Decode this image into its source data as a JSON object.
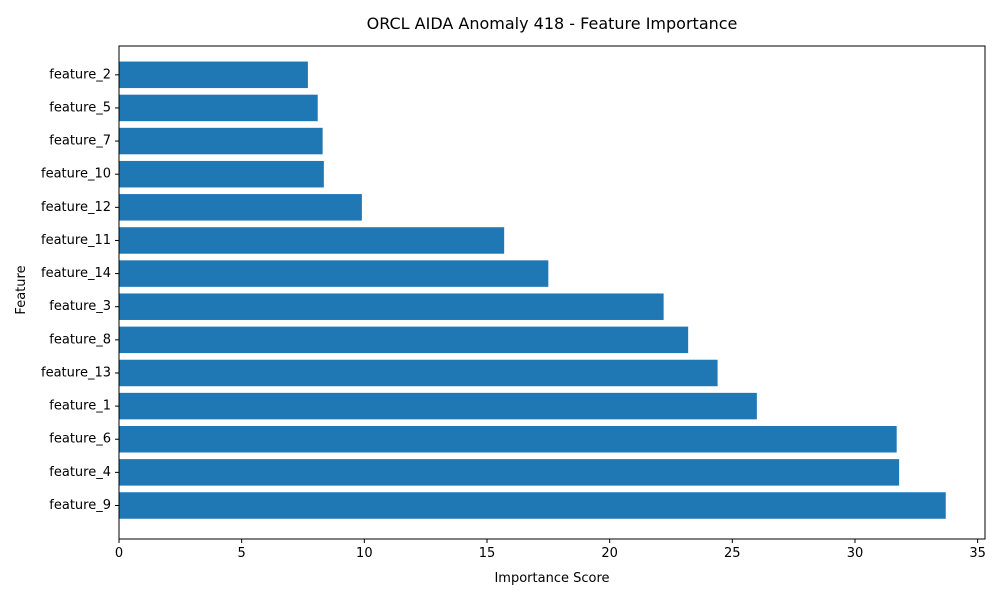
{
  "chart_data": {
    "type": "bar",
    "orientation": "horizontal",
    "title": "ORCL AIDA Anomaly 418 - Feature Importance",
    "xlabel": "Importance Score",
    "ylabel": "Feature",
    "xlim": [
      0,
      35.3
    ],
    "xticks": [
      0,
      5,
      10,
      15,
      20,
      25,
      30,
      35
    ],
    "bar_color": "#1f77b4",
    "grid": false,
    "categories": [
      "feature_9",
      "feature_4",
      "feature_6",
      "feature_1",
      "feature_13",
      "feature_8",
      "feature_3",
      "feature_14",
      "feature_11",
      "feature_12",
      "feature_10",
      "feature_7",
      "feature_5",
      "feature_2"
    ],
    "values": [
      33.7,
      31.8,
      31.7,
      26.0,
      24.4,
      23.2,
      22.2,
      17.5,
      15.7,
      9.9,
      8.35,
      8.3,
      8.1,
      7.7
    ]
  }
}
